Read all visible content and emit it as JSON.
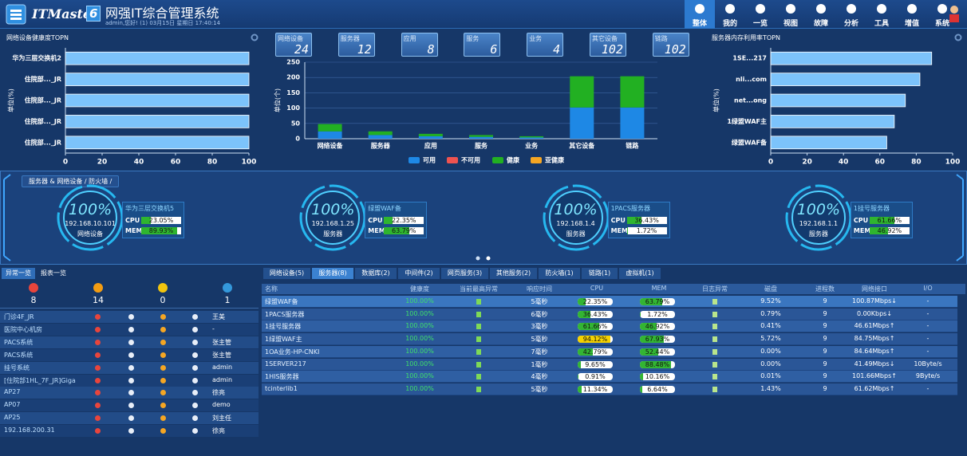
{
  "header": {
    "logo": "ITMaster",
    "logo_version": "6",
    "title": "网强IT综合管理系统",
    "subtitle": "admin,您好! (1) 03月15日 星期日 17:40:14"
  },
  "nav": [
    "整体",
    "我的",
    "一览",
    "视图",
    "故障",
    "分析",
    "工具",
    "增值",
    "系统"
  ],
  "health_chart": {
    "type": "hbar",
    "title": "网络设备健康度TOPN",
    "ylabel": "单位(%)",
    "color": "#7cc3fb",
    "categories": [
      "华为三层交换机2",
      "住院部..._JR",
      "住院部..._JR",
      "住院部..._JR",
      "住院部..._JR"
    ],
    "values": [
      100,
      100,
      100,
      100,
      100
    ],
    "xlim": [
      0,
      100
    ],
    "xticks": [
      0,
      20,
      40,
      60,
      80,
      100
    ]
  },
  "summary_tiles": [
    {
      "label": "网络设备",
      "value": 24
    },
    {
      "label": "服务器",
      "value": 12
    },
    {
      "label": "应用",
      "value": 8
    },
    {
      "label": "服务",
      "value": 6
    },
    {
      "label": "业务",
      "value": 4
    },
    {
      "label": "其它设备",
      "value": 102
    },
    {
      "label": "链路",
      "value": 102
    }
  ],
  "status_chart": {
    "type": "stacked_bar",
    "ylabel": "单位(个)",
    "categories": [
      "网络设备",
      "服务器",
      "应用",
      "服务",
      "业务",
      "其它设备",
      "链路"
    ],
    "series": [
      {
        "name": "可用",
        "color": "#1e88e5",
        "values": [
          24,
          12,
          8,
          6,
          4,
          102,
          102
        ]
      },
      {
        "name": "不可用",
        "color": "#ef5350",
        "values": [
          0,
          0,
          0,
          0,
          0,
          0,
          0
        ]
      },
      {
        "name": "健康",
        "color": "#22b022",
        "values": [
          24,
          12,
          8,
          6,
          4,
          102,
          102
        ]
      },
      {
        "name": "亚健康",
        "color": "#f5a623",
        "values": [
          0,
          0,
          0,
          0,
          0,
          0,
          0
        ]
      }
    ],
    "ylim": [
      0,
      250
    ],
    "yticks": [
      0,
      50,
      100,
      150,
      200,
      250
    ],
    "grid": true
  },
  "memory_chart": {
    "type": "hbar",
    "title": "服务器内存利用率TOPN",
    "ylabel": "单位(%)",
    "color": "#7cc3fb",
    "categories": [
      "1SE...217",
      "nli...com",
      "net...ong",
      "1绿盟WAF主",
      "绿盟WAF备"
    ],
    "values": [
      88.48,
      82,
      74,
      67.93,
      63.79
    ],
    "xlim": [
      0,
      100
    ],
    "xticks": [
      0,
      20,
      40,
      60,
      80,
      100
    ]
  },
  "carousel": {
    "breadcrumb": "服务器 & 网络设备 / 防火墙 /",
    "cpu_label": "CPU",
    "mem_label": "MEM",
    "cards": [
      {
        "health": "100%",
        "ip": "192.168.10.101",
        "kind": "网络设备",
        "name": "华为三层交换机5",
        "cpu": "23.05%",
        "mem": "89.93%"
      },
      {
        "health": "100%",
        "ip": "192.168.1.25",
        "kind": "服务器",
        "name": "绿盟WAF备",
        "cpu": "22.35%",
        "mem": "63.79%"
      },
      {
        "health": "100%",
        "ip": "192.168.1.4",
        "kind": "服务器",
        "name": "1PACS服务器",
        "cpu": "36.43%",
        "mem": "1.72%"
      },
      {
        "health": "100%",
        "ip": "192.168.1.1",
        "kind": "服务器",
        "name": "1挂号服务器",
        "cpu": "61.66%",
        "mem": "46.92%"
      }
    ]
  },
  "alarms": {
    "tabs": [
      "异常一览",
      "报表一览"
    ],
    "counts": [
      8,
      14,
      0,
      1
    ],
    "rows": [
      {
        "name": "门诊4F_JR",
        "user": "王美"
      },
      {
        "name": "医院中心机房",
        "user": "-"
      },
      {
        "name": "PACS系统",
        "user": "张主管"
      },
      {
        "name": "PACS系统",
        "user": "张主管"
      },
      {
        "name": "挂号系统",
        "user": "admin"
      },
      {
        "name": "[住院部1HL_7F_JR]Giga",
        "user": "admin"
      },
      {
        "name": "AP27",
        "user": "徐亮"
      },
      {
        "name": "AP07",
        "user": "demo"
      },
      {
        "name": "AP25",
        "user": "刘主任"
      },
      {
        "name": "192.168.200.31",
        "user": "徐亮"
      }
    ]
  },
  "resources": {
    "tabs": [
      "网络设备(5)",
      "服务器(8)",
      "数据库(2)",
      "中间件(2)",
      "网页服务(3)",
      "其他服务(2)",
      "防火墙(1)",
      "链路(1)",
      "虚拟机(1)"
    ],
    "headers": [
      "名称",
      "健康度",
      "当前最高异常",
      "响应时间",
      "CPU",
      "MEM",
      "日志异常",
      "磁盘",
      "进程数",
      "网络接口",
      "I/O"
    ],
    "rows": [
      {
        "name": "绿盟WAF备",
        "health": "100.00%",
        "response": "5毫秒",
        "cpu": "22.35%",
        "mem": "63.79%",
        "disk": "9.52%",
        "processes": "9",
        "interface": "100.87Mbps↓",
        "io": "-"
      },
      {
        "name": "1PACS服务器",
        "health": "100.00%",
        "response": "6毫秒",
        "cpu": "36.43%",
        "mem": "1.72%",
        "disk": "0.79%",
        "processes": "9",
        "interface": "0.00Kbps↓",
        "io": "-"
      },
      {
        "name": "1挂号服务器",
        "health": "100.00%",
        "response": "3毫秒",
        "cpu": "61.66%",
        "mem": "46.92%",
        "disk": "0.41%",
        "processes": "9",
        "interface": "46.61Mbps↑",
        "io": "-"
      },
      {
        "name": "1绿盟WAF主",
        "health": "100.00%",
        "response": "5毫秒",
        "cpu": "94.12%",
        "mem": "67.93%",
        "disk": "5.72%",
        "processes": "9",
        "interface": "84.75Mbps↑",
        "io": "-"
      },
      {
        "name": "1OA业务-HP-CNKI",
        "health": "100.00%",
        "response": "7毫秒",
        "cpu": "42.79%",
        "mem": "52.44%",
        "disk": "0.00%",
        "processes": "9",
        "interface": "84.64Mbps↑",
        "io": "-"
      },
      {
        "name": "1SERVER217",
        "health": "100.00%",
        "response": "1毫秒",
        "cpu": "9.65%",
        "mem": "88.48%",
        "disk": "0.00%",
        "processes": "9",
        "interface": "41.49Mbps↓",
        "io": "10Byte/s"
      },
      {
        "name": "1HIS服务器",
        "health": "100.00%",
        "response": "4毫秒",
        "cpu": "0.91%",
        "mem": "10.16%",
        "disk": "0.01%",
        "processes": "9",
        "interface": "101.66Mbps↑",
        "io": "9Byte/s"
      },
      {
        "name": "tcinterlib1",
        "health": "100.00%",
        "response": "5毫秒",
        "cpu": "11.34%",
        "mem": "6.64%",
        "disk": "1.43%",
        "processes": "9",
        "interface": "61.62Mbps↑",
        "io": "-"
      }
    ]
  }
}
